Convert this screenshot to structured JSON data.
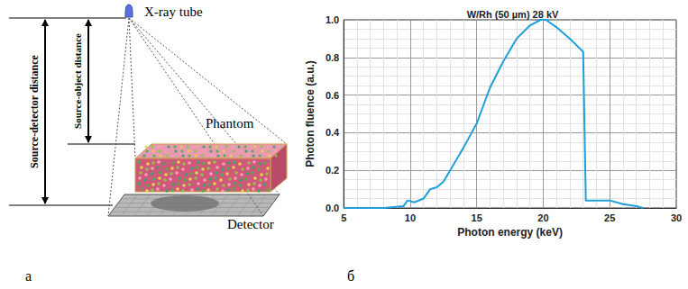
{
  "panel_labels": [
    "а",
    "б"
  ],
  "diagram": {
    "source": "X-ray tube",
    "object": "Phantom",
    "detector": "Detector",
    "source_detector_distance": "Source-detector distance",
    "source_object_distance": "Source-object distance"
  },
  "chart_data": {
    "type": "line",
    "title": "W/Rh (50 µm) 28 kV",
    "x_label": "Photon energy (keV)",
    "y_label": "Photon fluence (a.u.)",
    "x": [
      5,
      8,
      9.5,
      9.8,
      10.3,
      11,
      11.5,
      12,
      12.5,
      13,
      14,
      15,
      16,
      17,
      18,
      19,
      19.8,
      20.2,
      21,
      22,
      23,
      23.2,
      24,
      25,
      26,
      27,
      27.5
    ],
    "values": [
      0,
      0,
      0.01,
      0.04,
      0.03,
      0.05,
      0.1,
      0.11,
      0.14,
      0.2,
      0.32,
      0.45,
      0.64,
      0.78,
      0.9,
      0.97,
      1.0,
      1.0,
      0.96,
      0.9,
      0.83,
      0.04,
      0.04,
      0.04,
      0.02,
      0.01,
      0
    ],
    "color": "#1e9fd8",
    "xlim": [
      5,
      30
    ],
    "xticks": [
      5,
      10,
      15,
      20,
      25,
      30
    ],
    "ylim": [
      0,
      1
    ],
    "yticks": [
      {
        "value": 0,
        "label": "0.0"
      },
      0.2,
      0.4,
      0.6,
      0.8,
      {
        "value": 1,
        "label": "1.0"
      }
    ],
    "grid": true
  }
}
